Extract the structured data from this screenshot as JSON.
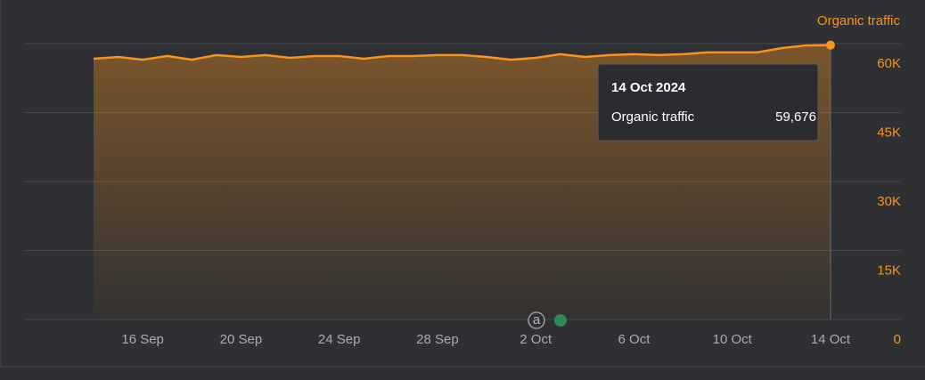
{
  "chart_data": {
    "type": "area",
    "categories": [
      null,
      null,
      "16 Sep",
      null,
      null,
      null,
      "20 Sep",
      null,
      null,
      null,
      "24 Sep",
      null,
      null,
      null,
      "28 Sep",
      null,
      null,
      null,
      "2 Oct",
      null,
      null,
      null,
      "6 Oct",
      null,
      null,
      null,
      "10 Oct",
      null,
      null,
      null,
      "14 Oct"
    ],
    "series": [
      {
        "name": "Organic traffic",
        "color": "#f7931e",
        "values": [
          56700,
          57100,
          56500,
          57300,
          56500,
          57500,
          57100,
          57500,
          56900,
          57300,
          57300,
          56700,
          57300,
          57300,
          57500,
          57500,
          57100,
          56500,
          56900,
          57700,
          57100,
          57500,
          57700,
          57500,
          57700,
          58100,
          58100,
          58100,
          59000,
          59600,
          59676
        ]
      }
    ],
    "ylim": [
      0,
      60000
    ],
    "yticks": [
      {
        "value": 0,
        "label": "0"
      },
      {
        "value": 15000,
        "label": "15K"
      },
      {
        "value": 30000,
        "label": "30K"
      },
      {
        "value": 45000,
        "label": "45K"
      },
      {
        "value": 60000,
        "label": "60K"
      }
    ],
    "grid": true,
    "legend": "top-right",
    "annotation_icon": "a",
    "tooltip": {
      "title": "14 Oct 2024",
      "value_label": "59,676"
    }
  }
}
